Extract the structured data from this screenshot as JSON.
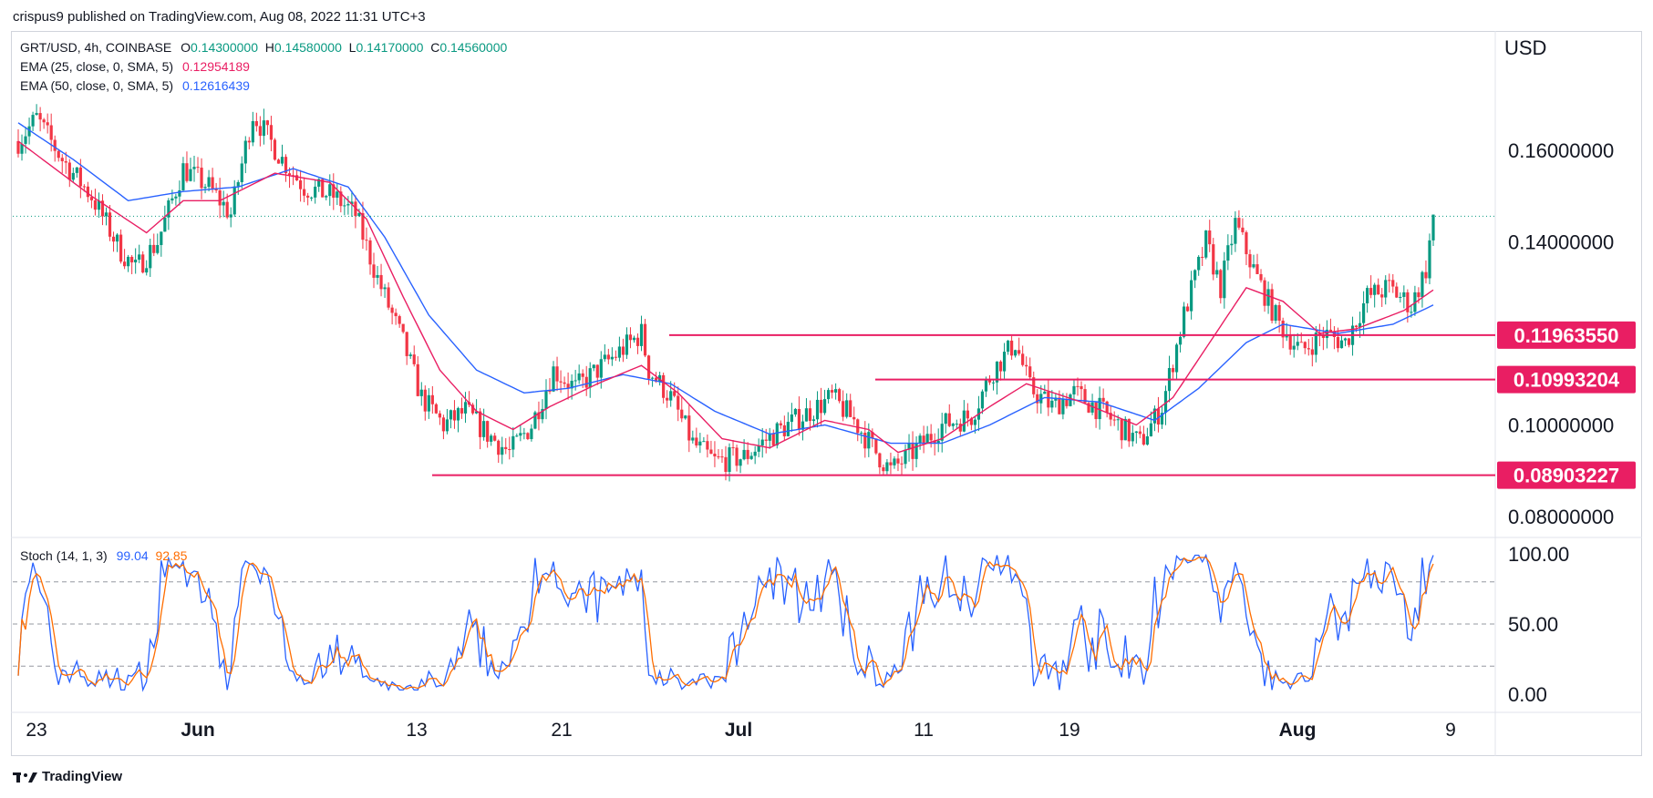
{
  "header": {
    "publisher": "crispus9 published on TradingView.com, Aug 08, 2022 11:31 UTC+3"
  },
  "legend": {
    "symbol": "GRT/USD, 4h, COINBASE",
    "o_label": "O",
    "o": "0.14300000",
    "h_label": "H",
    "h": "0.14580000",
    "l_label": "L",
    "l": "0.14170000",
    "c_label": "C",
    "c": "0.14560000",
    "ema25_label": "EMA (25, close, 0, SMA, 5)",
    "ema25_value": "0.12954189",
    "ema50_label": "EMA (50, close, 0, SMA, 5)",
    "ema50_value": "0.12616439",
    "stoch_label": "Stoch (14, 1, 3)",
    "stoch_k": "99.04",
    "stoch_d": "92.85"
  },
  "currency": "USD",
  "footer": {
    "brand": "TradingView"
  },
  "colors": {
    "up": "#089981",
    "down": "#f23645",
    "ema25": "#e91e63",
    "ema50": "#2962ff",
    "level": "#e91e63",
    "stoch_k": "#2962ff",
    "stoch_d": "#ff6d00"
  },
  "chart_data": {
    "type": "candlestick",
    "price_axis": {
      "ticks": [
        "0.16000000",
        "0.14000000",
        "0.10000000",
        "0.08000000"
      ],
      "tick_values": [
        0.16,
        0.14,
        0.1,
        0.08
      ],
      "range": [
        0.07,
        0.18
      ]
    },
    "time_axis": {
      "labels": [
        "23",
        "Jun",
        "13",
        "21",
        "Jul",
        "11",
        "19",
        "Aug",
        "9"
      ],
      "bold": [
        false,
        true,
        false,
        false,
        true,
        false,
        false,
        true,
        false
      ]
    },
    "levels": [
      {
        "label": "0.11963550",
        "value": 0.1196355
      },
      {
        "label": "0.10993204",
        "value": 0.10993204
      },
      {
        "label": "0.08903227",
        "value": 0.08903227
      }
    ],
    "last_price": 0.1456,
    "stoch_axis": {
      "ticks": [
        "100.00",
        "50.00",
        "0.00"
      ],
      "tick_values": [
        100,
        50,
        0
      ],
      "bands": [
        80,
        50,
        20
      ]
    },
    "price_anchors": [
      [
        0,
        0.162
      ],
      [
        5,
        0.167
      ],
      [
        12,
        0.158
      ],
      [
        20,
        0.15
      ],
      [
        28,
        0.138
      ],
      [
        32,
        0.134
      ],
      [
        38,
        0.14
      ],
      [
        45,
        0.156
      ],
      [
        52,
        0.152
      ],
      [
        58,
        0.146
      ],
      [
        64,
        0.168
      ],
      [
        72,
        0.158
      ],
      [
        78,
        0.152
      ],
      [
        86,
        0.15
      ],
      [
        92,
        0.146
      ],
      [
        98,
        0.132
      ],
      [
        105,
        0.118
      ],
      [
        110,
        0.106
      ],
      [
        116,
        0.1
      ],
      [
        122,
        0.103
      ],
      [
        128,
        0.098
      ],
      [
        134,
        0.094
      ],
      [
        140,
        0.1
      ],
      [
        146,
        0.112
      ],
      [
        152,
        0.108
      ],
      [
        158,
        0.112
      ],
      [
        164,
        0.116
      ],
      [
        170,
        0.12
      ],
      [
        172,
        0.112
      ],
      [
        178,
        0.106
      ],
      [
        184,
        0.096
      ],
      [
        190,
        0.092
      ],
      [
        198,
        0.093
      ],
      [
        206,
        0.098
      ],
      [
        214,
        0.102
      ],
      [
        222,
        0.106
      ],
      [
        228,
        0.101
      ],
      [
        234,
        0.094
      ],
      [
        238,
        0.09
      ],
      [
        244,
        0.094
      ],
      [
        252,
        0.1
      ],
      [
        260,
        0.102
      ],
      [
        266,
        0.112
      ],
      [
        272,
        0.118
      ],
      [
        276,
        0.108
      ],
      [
        282,
        0.104
      ],
      [
        288,
        0.107
      ],
      [
        294,
        0.104
      ],
      [
        300,
        0.1
      ],
      [
        306,
        0.096
      ],
      [
        312,
        0.104
      ],
      [
        318,
        0.124
      ],
      [
        324,
        0.14
      ],
      [
        328,
        0.13
      ],
      [
        332,
        0.144
      ],
      [
        338,
        0.132
      ],
      [
        344,
        0.122
      ],
      [
        350,
        0.116
      ],
      [
        356,
        0.12
      ],
      [
        362,
        0.118
      ],
      [
        368,
        0.128
      ],
      [
        374,
        0.13
      ],
      [
        380,
        0.126
      ],
      [
        384,
        0.134
      ],
      [
        386,
        0.1456
      ]
    ],
    "ema25_anchors": [
      [
        0,
        0.162
      ],
      [
        20,
        0.15
      ],
      [
        35,
        0.142
      ],
      [
        45,
        0.149
      ],
      [
        55,
        0.149
      ],
      [
        70,
        0.155
      ],
      [
        85,
        0.153
      ],
      [
        95,
        0.145
      ],
      [
        105,
        0.128
      ],
      [
        115,
        0.112
      ],
      [
        125,
        0.103
      ],
      [
        135,
        0.099
      ],
      [
        145,
        0.104
      ],
      [
        158,
        0.109
      ],
      [
        170,
        0.113
      ],
      [
        180,
        0.107
      ],
      [
        192,
        0.097
      ],
      [
        205,
        0.095
      ],
      [
        220,
        0.101
      ],
      [
        232,
        0.099
      ],
      [
        240,
        0.094
      ],
      [
        252,
        0.097
      ],
      [
        265,
        0.104
      ],
      [
        275,
        0.109
      ],
      [
        290,
        0.105
      ],
      [
        305,
        0.1
      ],
      [
        315,
        0.106
      ],
      [
        325,
        0.118
      ],
      [
        335,
        0.13
      ],
      [
        345,
        0.127
      ],
      [
        355,
        0.12
      ],
      [
        365,
        0.121
      ],
      [
        378,
        0.125
      ],
      [
        386,
        0.1295
      ]
    ],
    "ema50_anchors": [
      [
        0,
        0.166
      ],
      [
        15,
        0.158
      ],
      [
        30,
        0.149
      ],
      [
        45,
        0.151
      ],
      [
        60,
        0.152
      ],
      [
        75,
        0.156
      ],
      [
        90,
        0.152
      ],
      [
        100,
        0.141
      ],
      [
        112,
        0.124
      ],
      [
        125,
        0.112
      ],
      [
        138,
        0.107
      ],
      [
        150,
        0.108
      ],
      [
        165,
        0.111
      ],
      [
        178,
        0.109
      ],
      [
        190,
        0.103
      ],
      [
        205,
        0.098
      ],
      [
        220,
        0.1
      ],
      [
        238,
        0.096
      ],
      [
        252,
        0.096
      ],
      [
        265,
        0.1
      ],
      [
        280,
        0.106
      ],
      [
        295,
        0.105
      ],
      [
        310,
        0.101
      ],
      [
        322,
        0.108
      ],
      [
        335,
        0.118
      ],
      [
        345,
        0.122
      ],
      [
        360,
        0.12
      ],
      [
        375,
        0.122
      ],
      [
        386,
        0.1262
      ]
    ],
    "candle_count": 387,
    "seed": 7
  }
}
